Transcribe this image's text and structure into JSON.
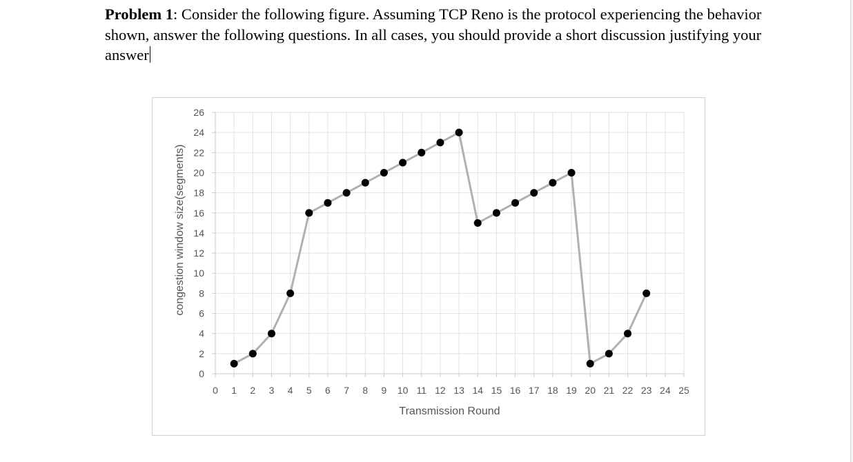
{
  "problem": {
    "label": "Problem 1",
    "text": ": Consider the following figure. Assuming TCP Reno is the protocol experiencing the behavior shown, answer the following questions. In all cases, you should provide a short discussion justifying your answer"
  },
  "chart_data": {
    "type": "line",
    "title": "",
    "xlabel": "Transmission Round",
    "ylabel": "congestion window size(segments)",
    "xlim": [
      0,
      25
    ],
    "ylim": [
      0,
      26
    ],
    "x_ticks": [
      0,
      1,
      2,
      3,
      4,
      5,
      6,
      7,
      8,
      9,
      10,
      11,
      12,
      13,
      14,
      15,
      16,
      17,
      18,
      19,
      20,
      21,
      22,
      23,
      24,
      25
    ],
    "y_ticks": [
      0,
      2,
      4,
      6,
      8,
      10,
      12,
      14,
      16,
      18,
      20,
      22,
      24,
      26
    ],
    "grid": true,
    "line_color": "#b0b0b0",
    "marker_color": "#000000",
    "series": [
      {
        "x": [
          1,
          2,
          3,
          4,
          5,
          6,
          7,
          8,
          9,
          10,
          11,
          12,
          13,
          14,
          15,
          16,
          17,
          18,
          19,
          20,
          21,
          22,
          23
        ],
        "y": [
          1,
          2,
          4,
          8,
          16,
          17,
          18,
          19,
          20,
          21,
          22,
          23,
          24,
          15,
          16,
          17,
          18,
          19,
          20,
          1,
          2,
          4,
          8
        ]
      }
    ]
  }
}
